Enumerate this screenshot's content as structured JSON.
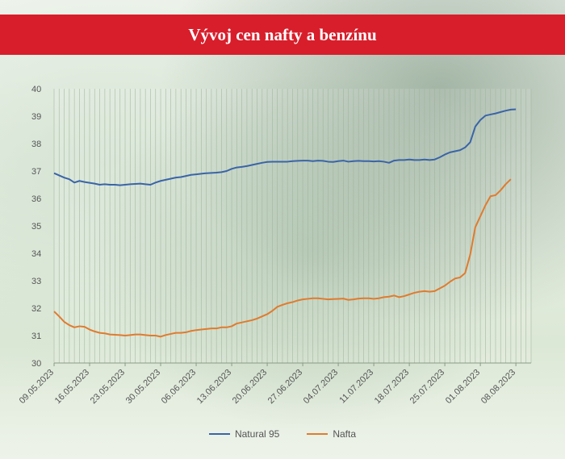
{
  "title": "Vývoj cen nafty a benzínu",
  "colors": {
    "title_bg": "#d81e2b",
    "natural": "#3a64a8",
    "nafta": "#e07b2e"
  },
  "chart_data": {
    "type": "line",
    "title": "Vývoj cen nafty a benzínu",
    "xlabel": "",
    "ylabel": "",
    "ylim": [
      30,
      40
    ],
    "yticks": [
      30,
      31,
      32,
      33,
      34,
      35,
      36,
      37,
      38,
      39,
      40
    ],
    "grid": "vertical",
    "legend": "bottom",
    "x_start": "09.05.2023",
    "x_end": "11.08.2023",
    "xtick_labels": [
      "09.05.2023",
      "16.05.2023",
      "23.05.2023",
      "30.05.2023",
      "06.06.2023",
      "13.06.2023",
      "20.06.2023",
      "27.06.2023",
      "04.07.2023",
      "11.07.2023",
      "18.07.2023",
      "25.07.2023",
      "01.08.2023",
      "08.08.2023"
    ],
    "series": [
      {
        "name": "Natural 95",
        "color": "#3a64a8",
        "points": [
          [
            "09.05.2023",
            36.92
          ],
          [
            "10.05.2023",
            36.84
          ],
          [
            "11.05.2023",
            36.76
          ],
          [
            "12.05.2023",
            36.7
          ],
          [
            "13.05.2023",
            36.58
          ],
          [
            "14.05.2023",
            36.64
          ],
          [
            "15.05.2023",
            36.6
          ],
          [
            "16.05.2023",
            36.57
          ],
          [
            "17.05.2023",
            36.54
          ],
          [
            "18.05.2023",
            36.5
          ],
          [
            "19.05.2023",
            36.52
          ],
          [
            "20.05.2023",
            36.5
          ],
          [
            "21.05.2023",
            36.5
          ],
          [
            "22.05.2023",
            36.48
          ],
          [
            "23.05.2023",
            36.5
          ],
          [
            "24.05.2023",
            36.52
          ],
          [
            "25.05.2023",
            36.53
          ],
          [
            "26.05.2023",
            36.54
          ],
          [
            "27.05.2023",
            36.52
          ],
          [
            "28.05.2023",
            36.5
          ],
          [
            "29.05.2023",
            36.58
          ],
          [
            "30.05.2023",
            36.64
          ],
          [
            "31.05.2023",
            36.68
          ],
          [
            "01.06.2023",
            36.72
          ],
          [
            "02.06.2023",
            36.76
          ],
          [
            "03.06.2023",
            36.78
          ],
          [
            "04.06.2023",
            36.82
          ],
          [
            "05.06.2023",
            36.86
          ],
          [
            "06.06.2023",
            36.88
          ],
          [
            "07.06.2023",
            36.9
          ],
          [
            "08.06.2023",
            36.92
          ],
          [
            "09.06.2023",
            36.93
          ],
          [
            "10.06.2023",
            36.94
          ],
          [
            "11.06.2023",
            36.96
          ],
          [
            "12.06.2023",
            37.0
          ],
          [
            "13.06.2023",
            37.08
          ],
          [
            "14.06.2023",
            37.13
          ],
          [
            "15.06.2023",
            37.15
          ],
          [
            "16.06.2023",
            37.18
          ],
          [
            "17.06.2023",
            37.22
          ],
          [
            "18.06.2023",
            37.26
          ],
          [
            "19.06.2023",
            37.3
          ],
          [
            "20.06.2023",
            37.33
          ],
          [
            "21.06.2023",
            37.34
          ],
          [
            "22.06.2023",
            37.34
          ],
          [
            "23.06.2023",
            37.34
          ],
          [
            "24.06.2023",
            37.34
          ],
          [
            "25.06.2023",
            37.36
          ],
          [
            "26.06.2023",
            37.37
          ],
          [
            "27.06.2023",
            37.38
          ],
          [
            "28.06.2023",
            37.38
          ],
          [
            "29.06.2023",
            37.36
          ],
          [
            "30.06.2023",
            37.38
          ],
          [
            "01.07.2023",
            37.37
          ],
          [
            "02.07.2023",
            37.34
          ],
          [
            "03.07.2023",
            37.33
          ],
          [
            "04.07.2023",
            37.36
          ],
          [
            "05.07.2023",
            37.38
          ],
          [
            "06.07.2023",
            37.34
          ],
          [
            "07.07.2023",
            37.36
          ],
          [
            "08.07.2023",
            37.37
          ],
          [
            "09.07.2023",
            37.36
          ],
          [
            "10.07.2023",
            37.36
          ],
          [
            "11.07.2023",
            37.35
          ],
          [
            "12.07.2023",
            37.36
          ],
          [
            "13.07.2023",
            37.34
          ],
          [
            "14.07.2023",
            37.3
          ],
          [
            "15.07.2023",
            37.38
          ],
          [
            "16.07.2023",
            37.4
          ],
          [
            "17.07.2023",
            37.4
          ],
          [
            "18.07.2023",
            37.42
          ],
          [
            "19.07.2023",
            37.4
          ],
          [
            "20.07.2023",
            37.4
          ],
          [
            "21.07.2023",
            37.42
          ],
          [
            "22.07.2023",
            37.4
          ],
          [
            "23.07.2023",
            37.42
          ],
          [
            "24.07.2023",
            37.5
          ],
          [
            "25.07.2023",
            37.6
          ],
          [
            "26.07.2023",
            37.68
          ],
          [
            "27.07.2023",
            37.72
          ],
          [
            "28.07.2023",
            37.76
          ],
          [
            "29.07.2023",
            37.86
          ],
          [
            "30.07.2023",
            38.05
          ],
          [
            "31.07.2023",
            38.62
          ],
          [
            "01.08.2023",
            38.86
          ],
          [
            "02.08.2023",
            39.02
          ],
          [
            "03.08.2023",
            39.06
          ],
          [
            "04.08.2023",
            39.1
          ],
          [
            "05.08.2023",
            39.15
          ],
          [
            "06.08.2023",
            39.2
          ],
          [
            "07.08.2023",
            39.24
          ],
          [
            "08.08.2023",
            39.25
          ]
        ]
      },
      {
        "name": "Nafta",
        "color": "#e07b2e",
        "points": [
          [
            "09.05.2023",
            31.88
          ],
          [
            "10.05.2023",
            31.7
          ],
          [
            "11.05.2023",
            31.5
          ],
          [
            "12.05.2023",
            31.38
          ],
          [
            "13.05.2023",
            31.3
          ],
          [
            "14.05.2023",
            31.34
          ],
          [
            "15.05.2023",
            31.32
          ],
          [
            "16.05.2023",
            31.22
          ],
          [
            "17.05.2023",
            31.15
          ],
          [
            "18.05.2023",
            31.1
          ],
          [
            "19.05.2023",
            31.08
          ],
          [
            "20.05.2023",
            31.04
          ],
          [
            "21.05.2023",
            31.03
          ],
          [
            "22.05.2023",
            31.02
          ],
          [
            "23.05.2023",
            31.0
          ],
          [
            "24.05.2023",
            31.02
          ],
          [
            "25.05.2023",
            31.04
          ],
          [
            "26.05.2023",
            31.04
          ],
          [
            "27.05.2023",
            31.02
          ],
          [
            "28.05.2023",
            31.0
          ],
          [
            "29.05.2023",
            31.0
          ],
          [
            "30.05.2023",
            30.96
          ],
          [
            "31.05.2023",
            31.02
          ],
          [
            "01.06.2023",
            31.06
          ],
          [
            "02.06.2023",
            31.1
          ],
          [
            "03.06.2023",
            31.1
          ],
          [
            "04.06.2023",
            31.12
          ],
          [
            "05.06.2023",
            31.17
          ],
          [
            "06.06.2023",
            31.2
          ],
          [
            "07.06.2023",
            31.22
          ],
          [
            "08.06.2023",
            31.24
          ],
          [
            "09.06.2023",
            31.26
          ],
          [
            "10.06.2023",
            31.26
          ],
          [
            "11.06.2023",
            31.3
          ],
          [
            "12.06.2023",
            31.3
          ],
          [
            "13.06.2023",
            31.34
          ],
          [
            "14.06.2023",
            31.44
          ],
          [
            "15.06.2023",
            31.48
          ],
          [
            "16.06.2023",
            31.52
          ],
          [
            "17.06.2023",
            31.56
          ],
          [
            "18.06.2023",
            31.62
          ],
          [
            "19.06.2023",
            31.7
          ],
          [
            "20.06.2023",
            31.78
          ],
          [
            "21.06.2023",
            31.9
          ],
          [
            "22.06.2023",
            32.05
          ],
          [
            "23.06.2023",
            32.12
          ],
          [
            "24.06.2023",
            32.18
          ],
          [
            "25.06.2023",
            32.22
          ],
          [
            "26.06.2023",
            32.28
          ],
          [
            "27.06.2023",
            32.32
          ],
          [
            "28.06.2023",
            32.34
          ],
          [
            "29.06.2023",
            32.36
          ],
          [
            "30.06.2023",
            32.36
          ],
          [
            "01.07.2023",
            32.34
          ],
          [
            "02.07.2023",
            32.32
          ],
          [
            "03.07.2023",
            32.33
          ],
          [
            "04.07.2023",
            32.34
          ],
          [
            "05.07.2023",
            32.35
          ],
          [
            "06.07.2023",
            32.3
          ],
          [
            "07.07.2023",
            32.32
          ],
          [
            "08.07.2023",
            32.35
          ],
          [
            "09.07.2023",
            32.36
          ],
          [
            "10.07.2023",
            32.36
          ],
          [
            "11.07.2023",
            32.34
          ],
          [
            "12.07.2023",
            32.36
          ],
          [
            "13.07.2023",
            32.4
          ],
          [
            "14.07.2023",
            32.42
          ],
          [
            "15.07.2023",
            32.46
          ],
          [
            "16.07.2023",
            32.4
          ],
          [
            "17.07.2023",
            32.44
          ],
          [
            "18.07.2023",
            32.5
          ],
          [
            "19.07.2023",
            32.56
          ],
          [
            "20.07.2023",
            32.6
          ],
          [
            "21.07.2023",
            32.62
          ],
          [
            "22.07.2023",
            32.6
          ],
          [
            "23.07.2023",
            32.62
          ],
          [
            "24.07.2023",
            32.72
          ],
          [
            "25.07.2023",
            32.82
          ],
          [
            "26.07.2023",
            32.96
          ],
          [
            "27.07.2023",
            33.08
          ],
          [
            "28.07.2023",
            33.12
          ],
          [
            "29.07.2023",
            33.28
          ],
          [
            "30.07.2023",
            33.95
          ],
          [
            "31.07.2023",
            34.95
          ],
          [
            "01.08.2023",
            35.35
          ],
          [
            "02.08.2023",
            35.75
          ],
          [
            "03.08.2023",
            36.08
          ],
          [
            "04.08.2023",
            36.12
          ],
          [
            "05.08.2023",
            36.3
          ],
          [
            "06.08.2023",
            36.52
          ],
          [
            "07.08.2023",
            36.7
          ]
        ]
      }
    ]
  }
}
